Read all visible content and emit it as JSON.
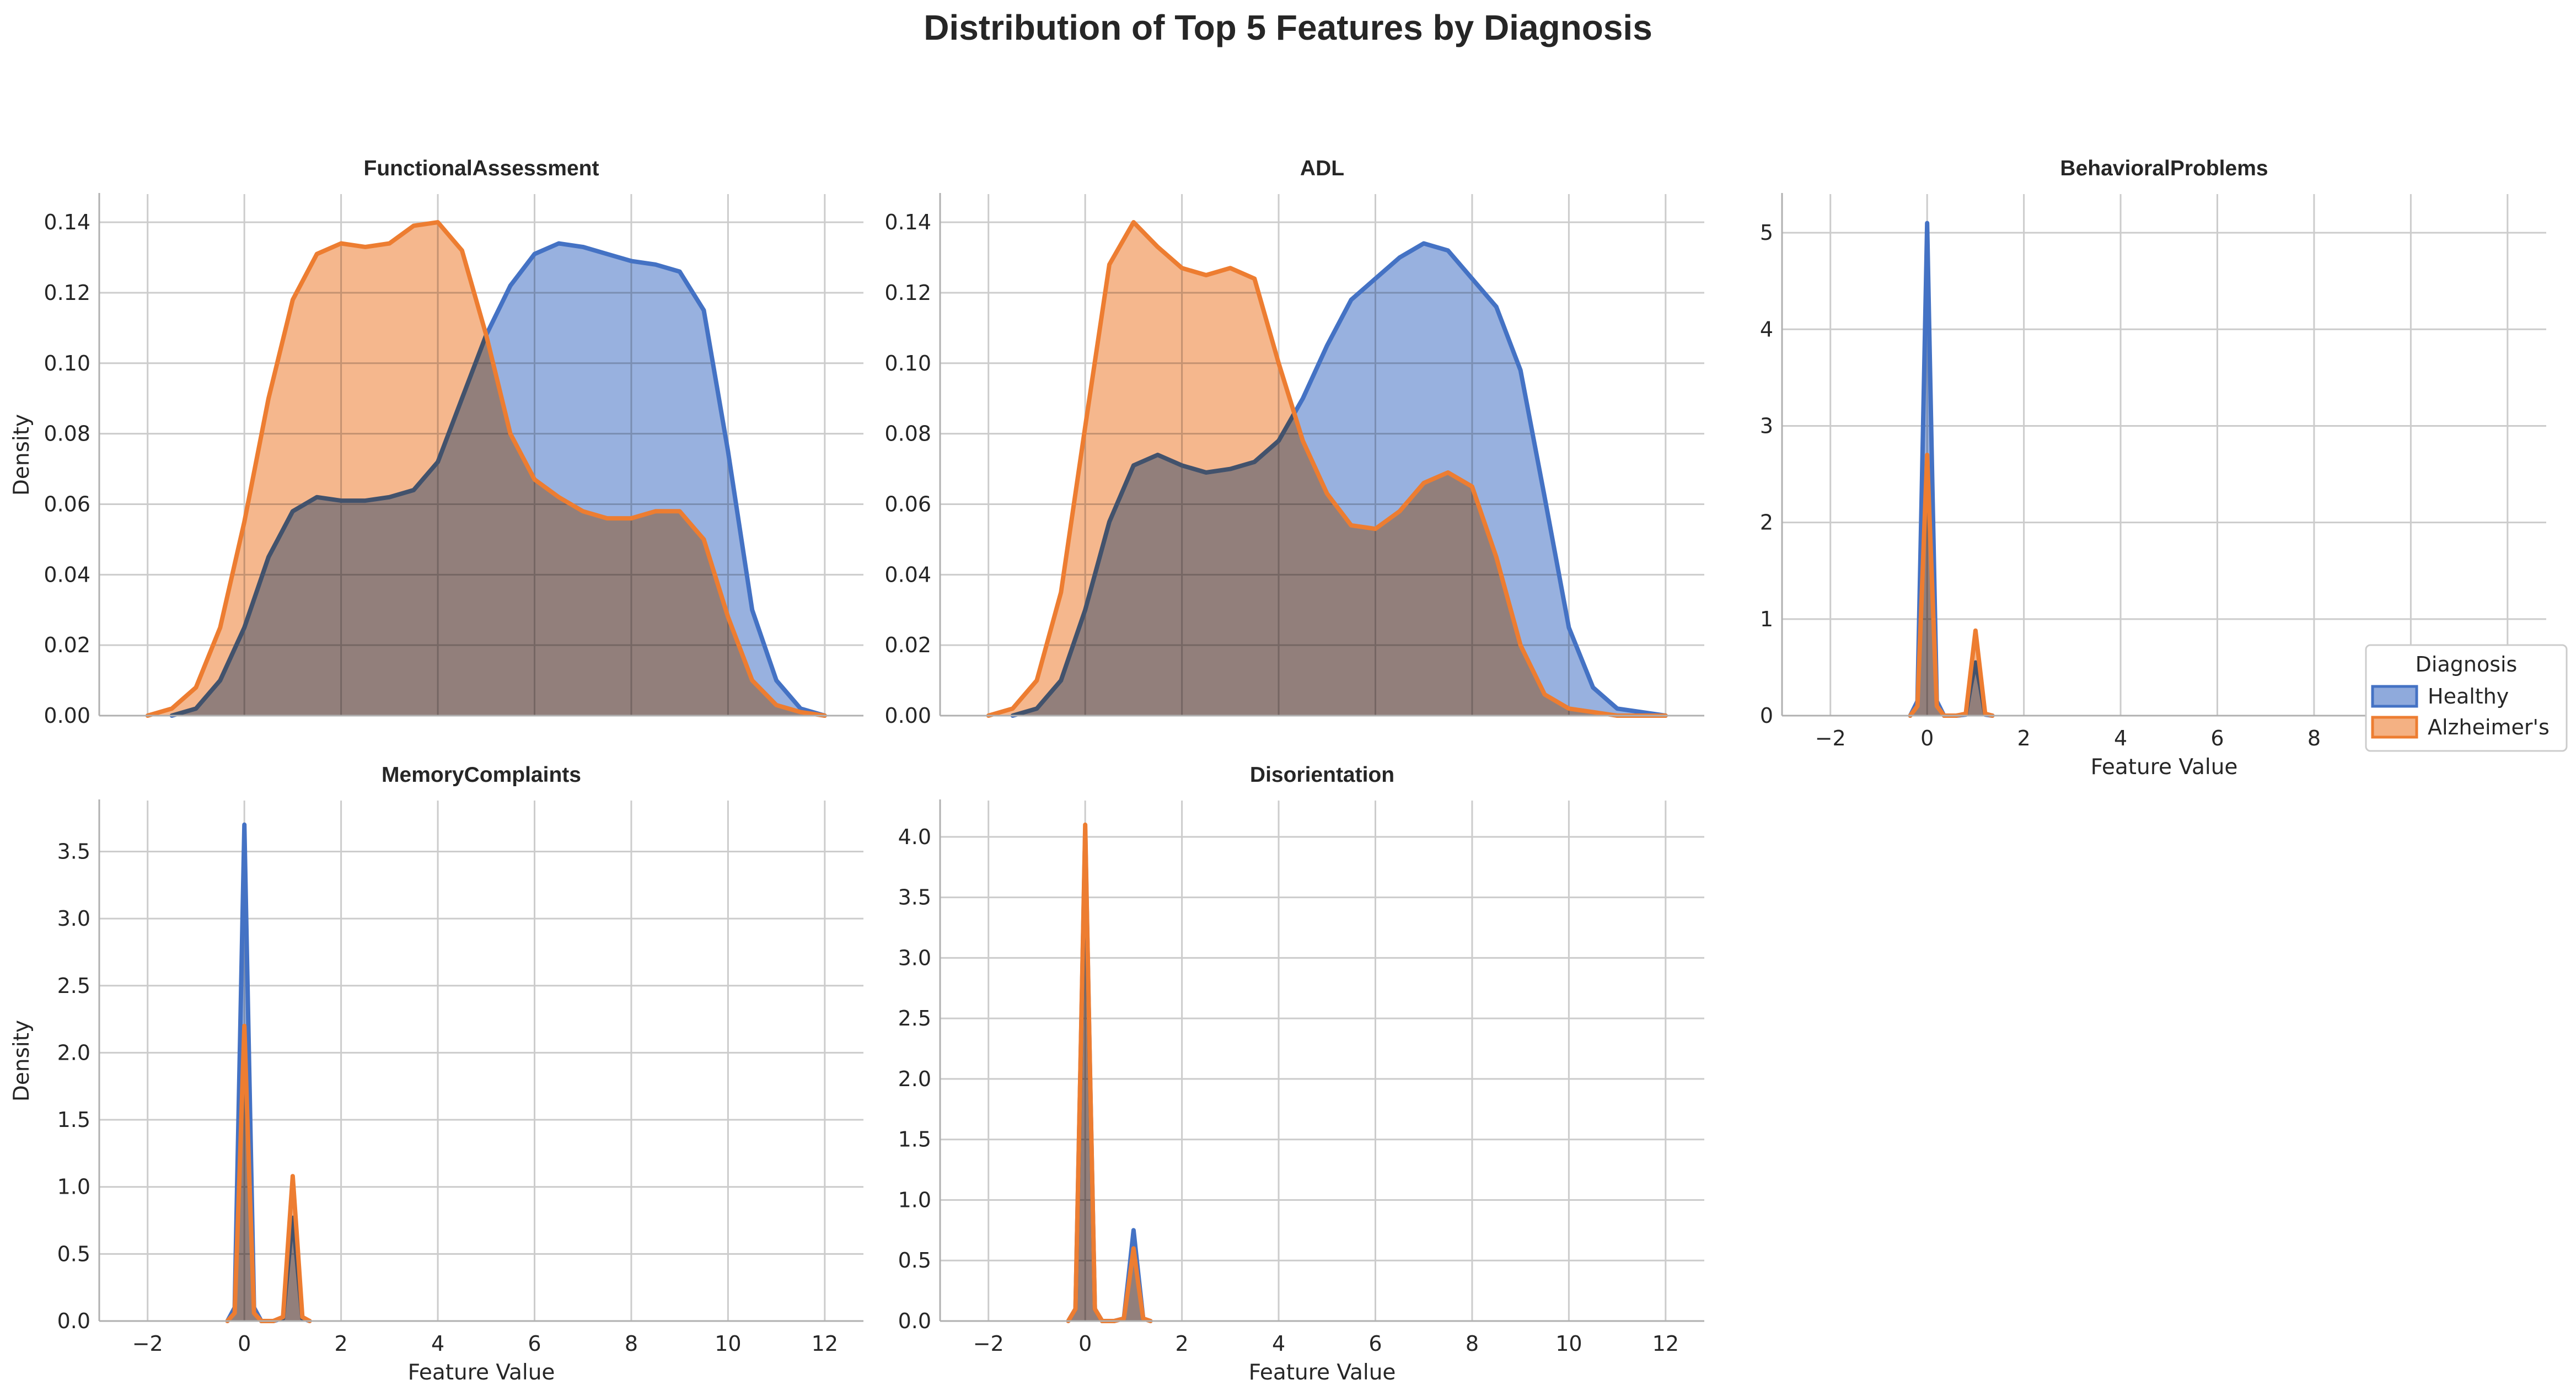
{
  "figure": {
    "title": "Distribution of Top 5 Features by Diagnosis"
  },
  "legend": {
    "title": "Diagnosis",
    "placement": "right-middle",
    "entries": [
      {
        "label": "Healthy",
        "color": "#4472c4"
      },
      {
        "label": "Alzheimer's",
        "color": "#ed7d31"
      }
    ]
  },
  "colors": {
    "healthy": "#4472c4",
    "healthy_fill": "#8faadc",
    "alzheimers": "#ed7d31",
    "alzheimers_fill": "#f4b183",
    "grid": "#cccccc"
  },
  "chart_data": [
    {
      "type": "area",
      "title": "FunctionalAssessment",
      "xlabel": "",
      "ylabel": "Density",
      "xlim": [
        -3,
        12.8
      ],
      "ylim": [
        0,
        0.148
      ],
      "xticks": [
        -2,
        0,
        2,
        4,
        6,
        8,
        10,
        12
      ],
      "yticks": [
        0.0,
        0.02,
        0.04,
        0.06,
        0.08,
        0.1,
        0.12,
        0.14
      ],
      "ytick_labels": [
        "0.00",
        "0.02",
        "0.04",
        "0.06",
        "0.08",
        "0.10",
        "0.12",
        "0.14"
      ],
      "show_xtick_labels": false,
      "grid": true,
      "series": [
        {
          "name": "Healthy",
          "x": [
            -1.5,
            -1,
            -0.5,
            0,
            0.5,
            1,
            1.5,
            2,
            2.5,
            3,
            3.5,
            4,
            4.5,
            5,
            5.5,
            6,
            6.5,
            7,
            7.5,
            8,
            8.5,
            9,
            9.5,
            10,
            10.5,
            11,
            11.5,
            12
          ],
          "y": [
            0,
            0.002,
            0.01,
            0.025,
            0.045,
            0.058,
            0.062,
            0.061,
            0.061,
            0.062,
            0.064,
            0.072,
            0.09,
            0.108,
            0.122,
            0.131,
            0.134,
            0.133,
            0.131,
            0.129,
            0.128,
            0.126,
            0.115,
            0.075,
            0.03,
            0.01,
            0.002,
            0
          ]
        },
        {
          "name": "Alzheimer's",
          "x": [
            -2,
            -1.5,
            -1,
            -0.5,
            0,
            0.5,
            1,
            1.5,
            2,
            2.5,
            3,
            3.5,
            4,
            4.5,
            5,
            5.5,
            6,
            6.5,
            7,
            7.5,
            8,
            8.5,
            9,
            9.5,
            10,
            10.5,
            11,
            11.5,
            12
          ],
          "y": [
            0,
            0.002,
            0.008,
            0.025,
            0.055,
            0.09,
            0.118,
            0.131,
            0.134,
            0.133,
            0.134,
            0.139,
            0.14,
            0.132,
            0.108,
            0.08,
            0.067,
            0.062,
            0.058,
            0.056,
            0.056,
            0.058,
            0.058,
            0.05,
            0.028,
            0.01,
            0.003,
            0.001,
            0
          ]
        }
      ]
    },
    {
      "type": "area",
      "title": "ADL",
      "xlabel": "",
      "ylabel": "",
      "xlim": [
        -3,
        12.8
      ],
      "ylim": [
        0,
        0.148
      ],
      "xticks": [
        -2,
        0,
        2,
        4,
        6,
        8,
        10,
        12
      ],
      "yticks": [
        0.0,
        0.02,
        0.04,
        0.06,
        0.08,
        0.1,
        0.12,
        0.14
      ],
      "ytick_labels": [
        "0.00",
        "0.02",
        "0.04",
        "0.06",
        "0.08",
        "0.10",
        "0.12",
        "0.14"
      ],
      "show_xtick_labels": false,
      "grid": true,
      "series": [
        {
          "name": "Healthy",
          "x": [
            -1.5,
            -1,
            -0.5,
            0,
            0.5,
            1,
            1.5,
            2,
            2.5,
            3,
            3.5,
            4,
            4.5,
            5,
            5.5,
            6,
            6.5,
            7,
            7.5,
            8,
            8.5,
            9,
            9.5,
            10,
            10.5,
            11,
            11.5,
            12
          ],
          "y": [
            0,
            0.002,
            0.01,
            0.03,
            0.055,
            0.071,
            0.074,
            0.071,
            0.069,
            0.07,
            0.072,
            0.078,
            0.09,
            0.105,
            0.118,
            0.124,
            0.13,
            0.134,
            0.132,
            0.124,
            0.116,
            0.098,
            0.062,
            0.025,
            0.008,
            0.002,
            0.001,
            0
          ]
        },
        {
          "name": "Alzheimer's",
          "x": [
            -2,
            -1.5,
            -1,
            -0.5,
            0,
            0.5,
            1,
            1.5,
            2,
            2.5,
            3,
            3.5,
            4,
            4.5,
            5,
            5.5,
            6,
            6.5,
            7,
            7.5,
            8,
            8.5,
            9,
            9.5,
            10,
            10.5,
            11,
            11.5,
            12
          ],
          "y": [
            0,
            0.002,
            0.01,
            0.035,
            0.082,
            0.128,
            0.14,
            0.133,
            0.127,
            0.125,
            0.127,
            0.124,
            0.1,
            0.078,
            0.063,
            0.054,
            0.053,
            0.058,
            0.066,
            0.069,
            0.065,
            0.045,
            0.02,
            0.006,
            0.002,
            0.001,
            0,
            0,
            0
          ]
        }
      ]
    },
    {
      "type": "area",
      "title": "BehavioralProblems",
      "xlabel": "Feature Value",
      "ylabel": "",
      "xlim": [
        -3,
        12.8
      ],
      "ylim": [
        0,
        5.4
      ],
      "xticks": [
        -2,
        0,
        2,
        4,
        6,
        8,
        10,
        12
      ],
      "yticks": [
        0,
        1,
        2,
        3,
        4,
        5
      ],
      "ytick_labels": [
        "0",
        "1",
        "2",
        "3",
        "4",
        "5"
      ],
      "show_xtick_labels": true,
      "grid": true,
      "series": [
        {
          "name": "Healthy",
          "x": [
            -0.35,
            -0.2,
            -0.1,
            0,
            0.1,
            0.2,
            0.35,
            0.6,
            0.8,
            0.9,
            1,
            1.1,
            1.2,
            1.35
          ],
          "y": [
            0,
            0.15,
            2.6,
            5.1,
            2.6,
            0.15,
            0,
            0,
            0.01,
            0.3,
            0.55,
            0.3,
            0.01,
            0
          ]
        },
        {
          "name": "Alzheimer's",
          "x": [
            -0.35,
            -0.2,
            -0.1,
            0,
            0.1,
            0.2,
            0.35,
            0.6,
            0.8,
            0.9,
            1,
            1.1,
            1.2,
            1.35
          ],
          "y": [
            0,
            0.1,
            1.4,
            2.7,
            1.4,
            0.1,
            0,
            0,
            0.02,
            0.45,
            0.88,
            0.45,
            0.02,
            0
          ]
        }
      ]
    },
    {
      "type": "area",
      "title": "MemoryComplaints",
      "xlabel": "Feature Value",
      "ylabel": "Density",
      "xlim": [
        -3,
        12.8
      ],
      "ylim": [
        0,
        3.88
      ],
      "xticks": [
        -2,
        0,
        2,
        4,
        6,
        8,
        10,
        12
      ],
      "yticks": [
        0,
        0.5,
        1.0,
        1.5,
        2.0,
        2.5,
        3.0,
        3.5
      ],
      "ytick_labels": [
        "0.0",
        "0.5",
        "1.0",
        "1.5",
        "2.0",
        "2.5",
        "3.0",
        "3.5"
      ],
      "show_xtick_labels": true,
      "grid": true,
      "series": [
        {
          "name": "Healthy",
          "x": [
            -0.35,
            -0.2,
            -0.1,
            0,
            0.1,
            0.2,
            0.35,
            0.6,
            0.8,
            0.9,
            1,
            1.1,
            1.2,
            1.35
          ],
          "y": [
            0,
            0.1,
            1.9,
            3.7,
            1.9,
            0.1,
            0,
            0,
            0.02,
            0.4,
            0.77,
            0.4,
            0.02,
            0
          ]
        },
        {
          "name": "Alzheimer's",
          "x": [
            -0.35,
            -0.2,
            -0.1,
            0,
            0.1,
            0.2,
            0.35,
            0.6,
            0.8,
            0.9,
            1,
            1.1,
            1.2,
            1.35
          ],
          "y": [
            0,
            0.06,
            1.1,
            2.2,
            1.1,
            0.06,
            0,
            0,
            0.03,
            0.56,
            1.08,
            0.56,
            0.03,
            0
          ]
        }
      ]
    },
    {
      "type": "area",
      "title": "Disorientation",
      "xlabel": "Feature Value",
      "ylabel": "",
      "xlim": [
        -3,
        12.8
      ],
      "ylim": [
        0,
        4.3
      ],
      "xticks": [
        -2,
        0,
        2,
        4,
        6,
        8,
        10,
        12
      ],
      "yticks": [
        0,
        0.5,
        1.0,
        1.5,
        2.0,
        2.5,
        3.0,
        3.5,
        4.0
      ],
      "ytick_labels": [
        "0.0",
        "0.5",
        "1.0",
        "1.5",
        "2.0",
        "2.5",
        "3.0",
        "3.5",
        "4.0"
      ],
      "show_xtick_labels": true,
      "grid": true,
      "series": [
        {
          "name": "Healthy",
          "x": [
            -0.35,
            -0.2,
            -0.1,
            0,
            0.1,
            0.2,
            0.35,
            0.6,
            0.8,
            0.9,
            1,
            1.1,
            1.2,
            1.35
          ],
          "y": [
            0,
            0.1,
            2.05,
            4.05,
            2.05,
            0.1,
            0,
            0,
            0.02,
            0.38,
            0.75,
            0.38,
            0.02,
            0
          ]
        },
        {
          "name": "Alzheimer's",
          "x": [
            -0.35,
            -0.2,
            -0.1,
            0,
            0.1,
            0.2,
            0.35,
            0.6,
            0.8,
            0.9,
            1,
            1.1,
            1.2,
            1.35
          ],
          "y": [
            0,
            0.1,
            2.07,
            4.1,
            2.07,
            0.1,
            0,
            0,
            0.02,
            0.3,
            0.6,
            0.3,
            0.02,
            0
          ]
        }
      ]
    }
  ]
}
